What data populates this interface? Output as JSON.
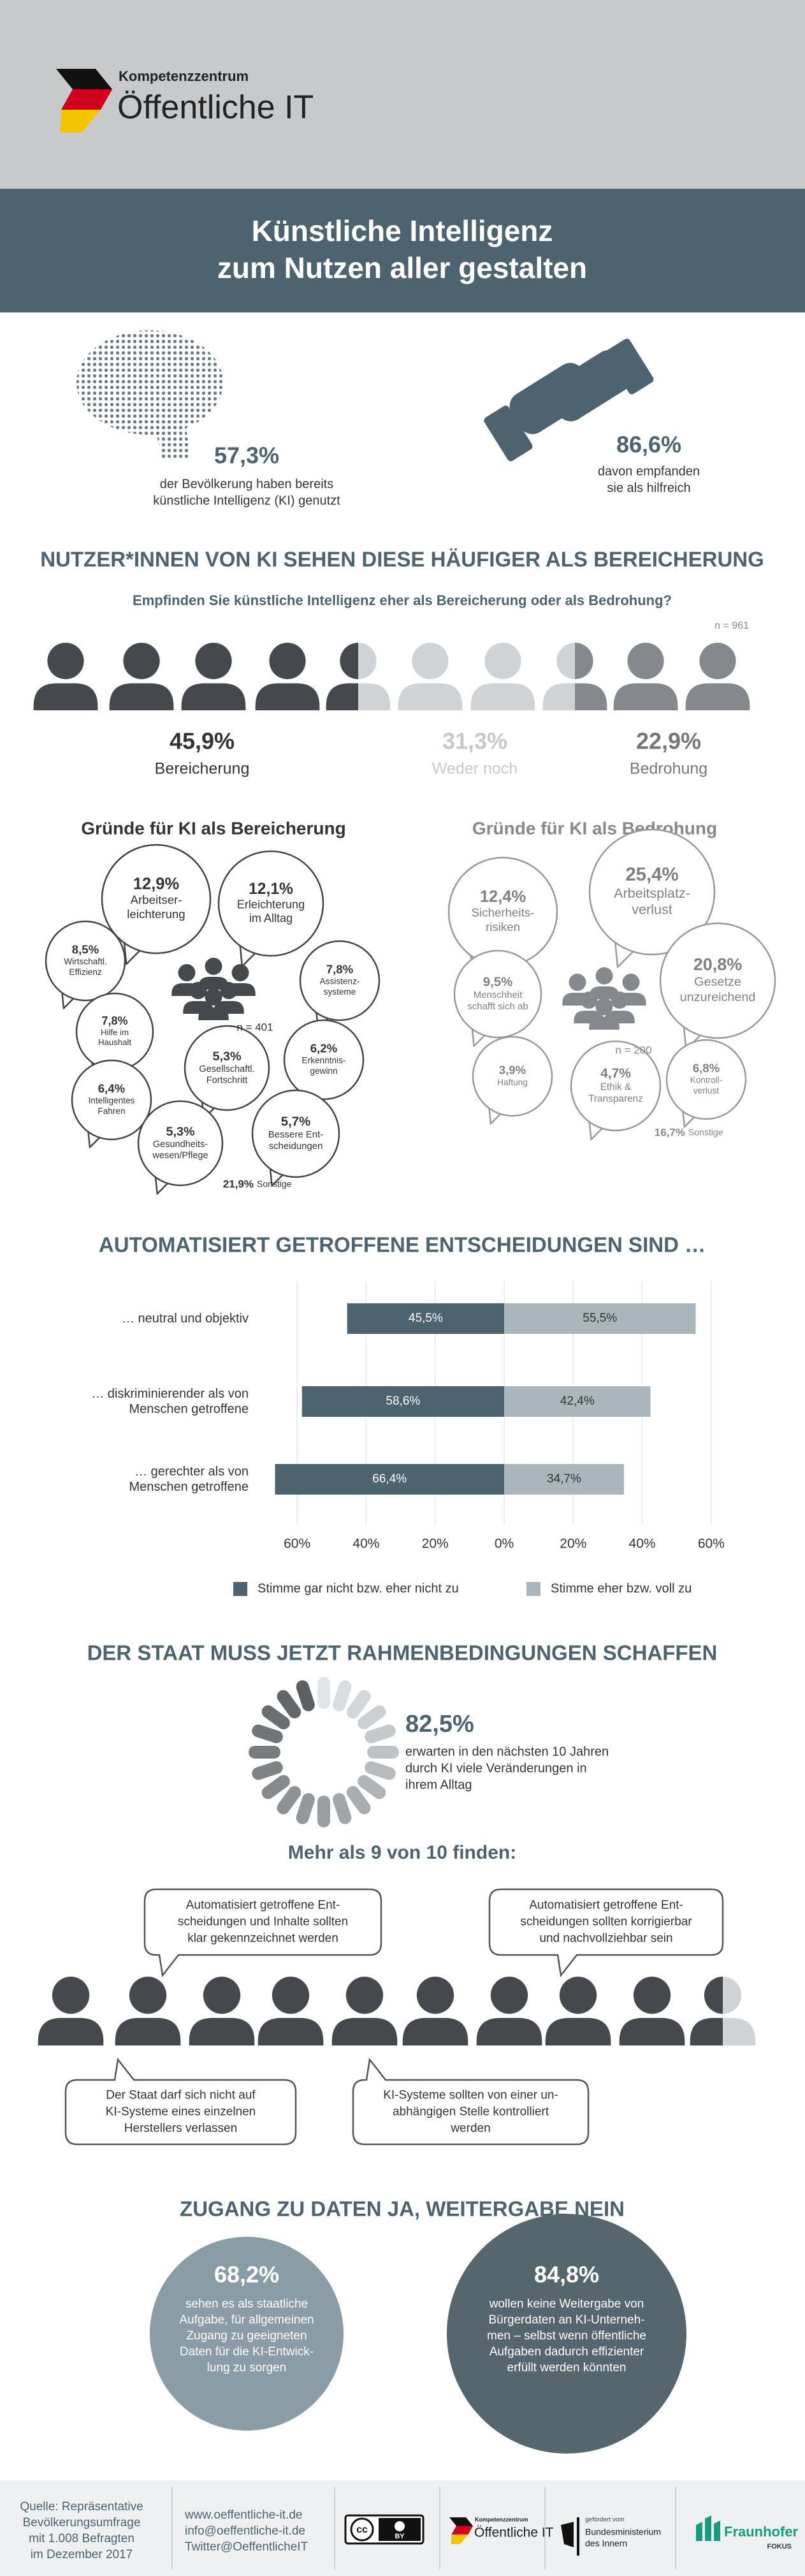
{
  "header": {
    "logo_top": "Kompetenzzentrum",
    "logo_main": "Öffentliche IT"
  },
  "title": [
    "Künstliche Intelligenz",
    "zum Nutzen aller gestalten"
  ],
  "intro": {
    "left": {
      "value": "57,3%",
      "text": [
        "der Bevölkerung haben bereits",
        "künstliche Intelligenz (KI) genutzt"
      ]
    },
    "right": {
      "value": "86,6%",
      "text": [
        "davon empfanden",
        "sie als hilfreich"
      ]
    }
  },
  "perception": {
    "heading": "NUTZER*INNEN VON KI SEHEN DIESE HÄUFIGER ALS BEREICHERUNG",
    "question": "Empfinden Sie künstliche Intelligenz eher als Bereicherung oder als Bedrohung?",
    "n": "n = 961",
    "groups": [
      {
        "value": "45,9%",
        "label": "Bereicherung"
      },
      {
        "value": "31,3%",
        "label": "Weder noch"
      },
      {
        "value": "22,9%",
        "label": "Bedrohung"
      }
    ]
  },
  "reasons": {
    "positive": {
      "heading": "Gründe für KI als Bereicherung",
      "n": "n = 401",
      "other_value": "21,9%",
      "other_label": "Sonstige",
      "items": [
        {
          "value": "12,9%",
          "label": [
            "Arbeitser-",
            "leichterung"
          ]
        },
        {
          "value": "12,1%",
          "label": [
            "Erleichterung",
            "im Alltag"
          ]
        },
        {
          "value": "8,5%",
          "label": [
            "Wirtschaftl.",
            "Effizienz"
          ]
        },
        {
          "value": "7,8%",
          "label": [
            "Assistenz-",
            "systeme"
          ]
        },
        {
          "value": "7,8%",
          "label": [
            "Hilfe im",
            "Haushalt"
          ]
        },
        {
          "value": "5,3%",
          "label": [
            "Gesellschaftl.",
            "Fortschritt"
          ]
        },
        {
          "value": "6,2%",
          "label": [
            "Erkenntnis-",
            "gewinn"
          ]
        },
        {
          "value": "6,4%",
          "label": [
            "Intelligentes",
            "Fahren"
          ]
        },
        {
          "value": "5,3%",
          "label": [
            "Gesundheits-",
            "wesen/Pflege"
          ]
        },
        {
          "value": "5,7%",
          "label": [
            "Bessere Ent-",
            "scheidungen"
          ]
        }
      ]
    },
    "negative": {
      "heading": "Gründe für KI als Bedrohung",
      "n": "n = 200",
      "other_value": "16,7%",
      "other_label": "Sonstige",
      "items": [
        {
          "value": "12,4%",
          "label": [
            "Sicherheits-",
            "risiken"
          ]
        },
        {
          "value": "25,4%",
          "label": [
            "Arbeitsplatz-",
            "verlust"
          ]
        },
        {
          "value": "9,5%",
          "label": [
            "Menschheit",
            "schafft sich ab"
          ]
        },
        {
          "value": "20,8%",
          "label": [
            "Gesetze",
            "unzureichend"
          ]
        },
        {
          "value": "3,9%",
          "label": [
            "Haftung"
          ]
        },
        {
          "value": "4,7%",
          "label": [
            "Ethik &",
            "Transparenz"
          ]
        },
        {
          "value": "6,8%",
          "label": [
            "Kontroll-",
            "verlust"
          ]
        }
      ]
    }
  },
  "chart_data": {
    "type": "bar",
    "orientation": "diverging",
    "title": "AUTOMATISIERT GETROFFENE ENTSCHEIDUNGEN SIND …",
    "categories": [
      "… neutral und objektiv",
      "… diskriminierender als von Menschen getroffene",
      "… gerechter als von Menschen getroffene"
    ],
    "series": [
      {
        "name": "Stimme gar nicht bzw. eher nicht zu",
        "color": "#4d6370",
        "side": "left",
        "values": [
          45.5,
          58.6,
          66.4
        ],
        "value_labels": [
          "45,5%",
          "58,6%",
          "66,4%"
        ]
      },
      {
        "name": "Stimme eher bzw. voll zu",
        "color": "#aab6bc",
        "side": "right",
        "values": [
          55.5,
          42.4,
          34.7
        ],
        "value_labels": [
          "55,5%",
          "42,4%",
          "34,7%"
        ]
      }
    ],
    "xlim": [
      -70,
      70
    ],
    "xticks": [
      {
        "value": -60,
        "label": "60%"
      },
      {
        "value": -40,
        "label": "40%"
      },
      {
        "value": -20,
        "label": "20%"
      },
      {
        "value": 0,
        "label": "0%"
      },
      {
        "value": 20,
        "label": "20%"
      },
      {
        "value": 40,
        "label": "40%"
      },
      {
        "value": 60,
        "label": "60%"
      }
    ],
    "grid": true,
    "legend": "bottom"
  },
  "state": {
    "heading": "DER STAAT MUSS JETZT RAHMENBEDINGUNGEN SCHAFFEN",
    "value": "82,5%",
    "text": [
      "erwarten in den nächsten 10 Jahren",
      "durch KI viele Veränderungen in",
      "ihrem Alltag"
    ],
    "subheading": "Mehr als 9 von 10 finden:",
    "bubbles": [
      [
        "Automatisiert getroffene Ent-",
        "scheidungen und Inhalte sollten",
        "klar gekennzeichnet werden"
      ],
      [
        "Automatisiert getroffene Ent-",
        "scheidungen sollten korrigierbar",
        "und nachvollziehbar sein"
      ],
      [
        "Der Staat darf sich nicht auf",
        "KI-Systeme eines einzelnen",
        "Herstellers verlassen"
      ],
      [
        "KI-Systeme sollten von einer un-",
        "abhängigen Stelle kontrolliert",
        "werden"
      ]
    ]
  },
  "data_access": {
    "heading": "ZUGANG ZU DATEN JA, WEITERGABE NEIN",
    "left": {
      "value": "68,2%",
      "text": [
        "sehen es als staatliche",
        "Aufgabe, für allgemeinen",
        "Zugang zu geeigneten",
        "Daten für die KI-Entwick-",
        "lung zu sorgen"
      ]
    },
    "right": {
      "value": "84,8%",
      "text": [
        "wollen keine Weitergabe von",
        "Bürgerdaten an KI-Unterneh-",
        "men – selbst wenn öffentliche",
        "Aufgaben dadurch effizienter",
        "erfüllt werden könnten"
      ]
    }
  },
  "footer": {
    "source": [
      "Quelle: Repräsentative",
      "Bevölkerungsumfrage",
      "mit 1.008 Befragten",
      "im Dezember 2017"
    ],
    "contact": [
      "www.oeffentliche-it.de",
      "info@oeffentliche-it.de",
      "Twitter@OeffentlicheIT"
    ],
    "cc_icon": "cc",
    "cc_badge": "BY",
    "logo_top": "Kompetenzzentrum",
    "logo_main": "Öffentliche IT",
    "ministry_pre": "gefördert vom",
    "ministry": [
      "Bundesministerium",
      "des Innern"
    ],
    "fraunhofer": "Fraunhofer",
    "fokus": "FOKUS"
  }
}
